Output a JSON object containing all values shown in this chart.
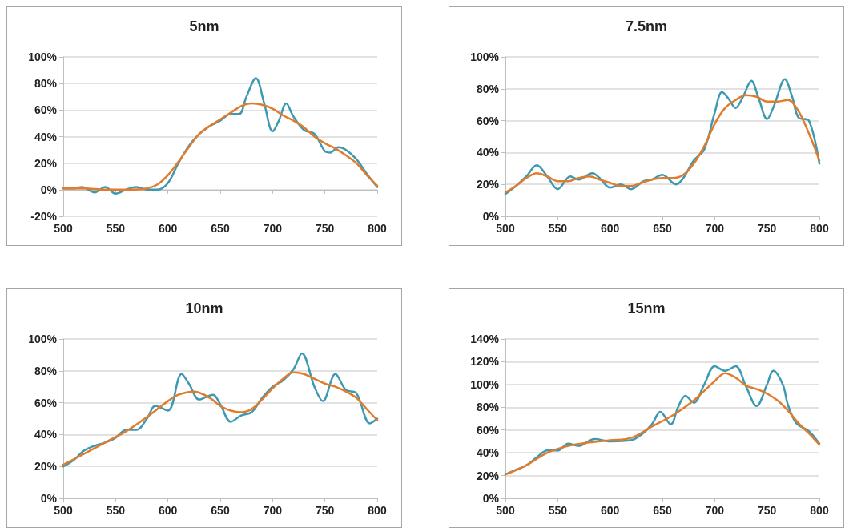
{
  "chart_data": [
    {
      "type": "line",
      "title": "5nm",
      "xlim": [
        500,
        800
      ],
      "xticks": [
        500,
        550,
        600,
        650,
        700,
        750,
        800
      ],
      "ylim": [
        -20,
        100
      ],
      "yticks": [
        {
          "value": -20,
          "label": "-20%"
        },
        {
          "value": 0,
          "label": "0%"
        },
        {
          "value": 20,
          "label": "20%"
        },
        {
          "value": 40,
          "label": "40%"
        },
        {
          "value": 60,
          "label": "60%"
        },
        {
          "value": 80,
          "label": "80%"
        },
        {
          "value": 100,
          "label": "100%"
        }
      ],
      "grid": "y",
      "marker": "none",
      "line_style": "solid",
      "series": [
        {
          "color": "#3b9ab2",
          "x": [
            500,
            510,
            518,
            530,
            540,
            550,
            560,
            570,
            580,
            590,
            600,
            610,
            620,
            630,
            640,
            650,
            660,
            668,
            675,
            684,
            692,
            700,
            706,
            713,
            720,
            730,
            740,
            750,
            755,
            763,
            770,
            780,
            790,
            800
          ],
          "values": [
            1,
            1,
            2,
            -2,
            2,
            -3,
            0,
            2,
            0,
            0,
            5,
            20,
            33,
            42,
            48,
            52,
            57,
            57,
            70,
            84,
            65,
            44,
            52,
            65,
            55,
            45,
            42,
            29,
            28,
            32,
            30,
            23,
            12,
            2
          ]
        },
        {
          "color": "#e37b2c",
          "x": [
            500,
            520,
            540,
            560,
            580,
            590,
            600,
            610,
            620,
            630,
            640,
            650,
            660,
            670,
            680,
            690,
            700,
            710,
            720,
            730,
            740,
            750,
            760,
            770,
            780,
            790,
            800
          ],
          "values": [
            1,
            1,
            0,
            0,
            1,
            4,
            11,
            21,
            32,
            42,
            48,
            53,
            58,
            63,
            65,
            64,
            61,
            56,
            52,
            47,
            40,
            35,
            31,
            26,
            20,
            11,
            3
          ]
        }
      ]
    },
    {
      "type": "line",
      "title": "7.5nm",
      "xlim": [
        500,
        800
      ],
      "xticks": [
        500,
        550,
        600,
        650,
        700,
        750,
        800
      ],
      "ylim": [
        0,
        100
      ],
      "yticks": [
        {
          "value": 0,
          "label": "0%"
        },
        {
          "value": 20,
          "label": "20%"
        },
        {
          "value": 40,
          "label": "40%"
        },
        {
          "value": 60,
          "label": "60%"
        },
        {
          "value": 80,
          "label": "80%"
        },
        {
          "value": 100,
          "label": "100%"
        }
      ],
      "grid": "y",
      "marker": "none",
      "line_style": "solid",
      "series": [
        {
          "color": "#3b9ab2",
          "x": [
            500,
            510,
            520,
            530,
            540,
            550,
            562,
            570,
            583,
            590,
            600,
            610,
            620,
            632,
            640,
            650,
            663,
            670,
            680,
            690,
            700,
            707,
            713,
            720,
            727,
            735,
            742,
            750,
            757,
            767,
            774,
            780,
            790,
            800
          ],
          "values": [
            14,
            19,
            25,
            32,
            25,
            17,
            25,
            23,
            27,
            24,
            18,
            20,
            17,
            22,
            23,
            26,
            20,
            24,
            35,
            42,
            65,
            78,
            74,
            68,
            75,
            85,
            74,
            61,
            70,
            86,
            75,
            62,
            60,
            33
          ]
        },
        {
          "color": "#e37b2c",
          "x": [
            500,
            510,
            520,
            530,
            540,
            550,
            560,
            570,
            580,
            590,
            600,
            610,
            620,
            630,
            640,
            650,
            660,
            670,
            680,
            690,
            700,
            710,
            720,
            730,
            740,
            750,
            760,
            770,
            780,
            790,
            800
          ],
          "values": [
            15,
            19,
            24,
            27,
            25,
            22,
            22,
            24,
            25,
            23,
            21,
            19,
            19,
            21,
            23,
            24,
            24,
            26,
            33,
            44,
            58,
            68,
            73,
            76,
            75,
            72,
            72,
            73,
            66,
            52,
            35
          ]
        }
      ]
    },
    {
      "type": "line",
      "title": "10nm",
      "xlim": [
        500,
        800
      ],
      "xticks": [
        500,
        550,
        600,
        650,
        700,
        750,
        800
      ],
      "ylim": [
        0,
        100
      ],
      "yticks": [
        {
          "value": 0,
          "label": "0%"
        },
        {
          "value": 20,
          "label": "20%"
        },
        {
          "value": 40,
          "label": "40%"
        },
        {
          "value": 60,
          "label": "60%"
        },
        {
          "value": 80,
          "label": "80%"
        },
        {
          "value": 100,
          "label": "100%"
        }
      ],
      "grid": "y",
      "marker": "none",
      "line_style": "solid",
      "series": [
        {
          "color": "#3b9ab2",
          "x": [
            500,
            510,
            520,
            530,
            540,
            550,
            560,
            570,
            580,
            588,
            600,
            613,
            620,
            630,
            643,
            650,
            660,
            670,
            680,
            690,
            700,
            710,
            720,
            728,
            740,
            748,
            760,
            770,
            780,
            793,
            800
          ],
          "values": [
            20,
            24,
            30,
            33,
            35,
            38,
            43,
            43,
            50,
            58,
            55,
            78,
            72,
            62,
            65,
            59,
            48,
            52,
            54,
            63,
            70,
            74,
            81,
            91,
            70,
            61,
            78,
            68,
            66,
            47,
            50
          ]
        },
        {
          "color": "#e37b2c",
          "x": [
            500,
            520,
            540,
            560,
            580,
            600,
            610,
            625,
            640,
            650,
            660,
            670,
            680,
            690,
            700,
            710,
            720,
            730,
            740,
            750,
            760,
            770,
            780,
            790,
            800
          ],
          "values": [
            21,
            28,
            35,
            42,
            51,
            61,
            65,
            67,
            63,
            58,
            55,
            54,
            56,
            62,
            69,
            75,
            79,
            78,
            75,
            72,
            70,
            67,
            63,
            56,
            49
          ]
        }
      ]
    },
    {
      "type": "line",
      "title": "15nm",
      "xlim": [
        500,
        800
      ],
      "xticks": [
        500,
        550,
        600,
        650,
        700,
        750,
        800
      ],
      "ylim": [
        0,
        140
      ],
      "yticks": [
        {
          "value": 0,
          "label": "0%"
        },
        {
          "value": 20,
          "label": "20%"
        },
        {
          "value": 40,
          "label": "40%"
        },
        {
          "value": 60,
          "label": "60%"
        },
        {
          "value": 80,
          "label": "80%"
        },
        {
          "value": 100,
          "label": "100%"
        },
        {
          "value": 120,
          "label": "120%"
        },
        {
          "value": 140,
          "label": "140%"
        }
      ],
      "grid": "y",
      "marker": "none",
      "line_style": "solid",
      "series": [
        {
          "color": "#3b9ab2",
          "x": [
            500,
            510,
            520,
            530,
            540,
            550,
            560,
            570,
            585,
            600,
            620,
            630,
            640,
            648,
            658,
            665,
            672,
            680,
            690,
            700,
            710,
            720,
            730,
            740,
            750,
            756,
            765,
            770,
            778,
            790,
            800
          ],
          "values": [
            21,
            25,
            29,
            36,
            42,
            42,
            48,
            46,
            52,
            50,
            51,
            56,
            65,
            76,
            65,
            80,
            90,
            84,
            100,
            116,
            112,
            116,
            98,
            81,
            100,
            112,
            100,
            82,
            66,
            59,
            48
          ]
        },
        {
          "color": "#e37b2c",
          "x": [
            500,
            520,
            540,
            560,
            580,
            600,
            620,
            640,
            660,
            680,
            700,
            710,
            720,
            730,
            740,
            750,
            760,
            770,
            780,
            790,
            800
          ],
          "values": [
            21,
            29,
            40,
            46,
            49,
            51,
            53,
            63,
            73,
            86,
            103,
            110,
            106,
            99,
            96,
            92,
            86,
            77,
            66,
            57,
            47
          ]
        }
      ]
    }
  ]
}
